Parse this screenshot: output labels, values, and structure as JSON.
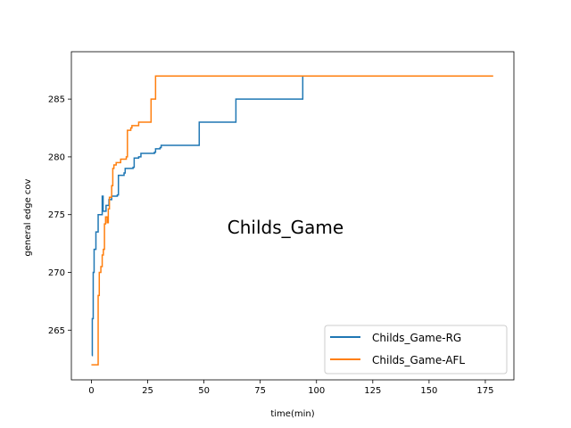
{
  "chart_data": {
    "type": "line",
    "annotation": "Childs_Game",
    "xlabel": "time(min)",
    "ylabel": "general edge cov",
    "xlim": [
      -8.9,
      187.7
    ],
    "ylim": [
      260.7,
      289.1
    ],
    "xticks": [
      0,
      25,
      50,
      75,
      100,
      125,
      150,
      175
    ],
    "yticks": [
      265,
      270,
      275,
      280,
      285
    ],
    "grid": false,
    "legend_position": "lower-right",
    "series": [
      {
        "name": "Childs_Game-RG",
        "color": "#1f77b4",
        "step": true,
        "points": [
          [
            0.2,
            262.8
          ],
          [
            0.4,
            266
          ],
          [
            0.8,
            270
          ],
          [
            1.2,
            272
          ],
          [
            2,
            273.5
          ],
          [
            3,
            275
          ],
          [
            4,
            275
          ],
          [
            4.8,
            276.6
          ],
          [
            5.2,
            275.3
          ],
          [
            6.5,
            275.8
          ],
          [
            7.8,
            276.3
          ],
          [
            9,
            276.6
          ],
          [
            11.5,
            276.7
          ],
          [
            12,
            278.4
          ],
          [
            13.5,
            278.4
          ],
          [
            14.5,
            278.6
          ],
          [
            15,
            279
          ],
          [
            18.5,
            279.1
          ],
          [
            19,
            279.9
          ],
          [
            21,
            280
          ],
          [
            22,
            280.3
          ],
          [
            28,
            280.4
          ],
          [
            28.5,
            280.7
          ],
          [
            30.5,
            280.8
          ],
          [
            31,
            281
          ],
          [
            47.5,
            281
          ],
          [
            47.9,
            283
          ],
          [
            63.8,
            283
          ],
          [
            64.2,
            285
          ],
          [
            93.5,
            285
          ],
          [
            93.9,
            287
          ],
          [
            155.8,
            287
          ]
        ]
      },
      {
        "name": "Childs_Game-AFL",
        "color": "#ff7f0e",
        "step": true,
        "points": [
          [
            0,
            262
          ],
          [
            2.5,
            262
          ],
          [
            3,
            268
          ],
          [
            3.5,
            270
          ],
          [
            4.2,
            270.5
          ],
          [
            4.8,
            271.5
          ],
          [
            5.3,
            272
          ],
          [
            5.8,
            274.2
          ],
          [
            6.3,
            274.8
          ],
          [
            7,
            274.3
          ],
          [
            7.5,
            275.5
          ],
          [
            8,
            276.5
          ],
          [
            9,
            277.5
          ],
          [
            9.5,
            279
          ],
          [
            10,
            279.3
          ],
          [
            11,
            279.5
          ],
          [
            13,
            279.8
          ],
          [
            15.5,
            280
          ],
          [
            16,
            282.3
          ],
          [
            17.5,
            282.5
          ],
          [
            18,
            282.7
          ],
          [
            20.5,
            282.7
          ],
          [
            21,
            283
          ],
          [
            26,
            283
          ],
          [
            26.5,
            285
          ],
          [
            28,
            285
          ],
          [
            28.5,
            287
          ],
          [
            178.5,
            287
          ]
        ]
      }
    ]
  }
}
